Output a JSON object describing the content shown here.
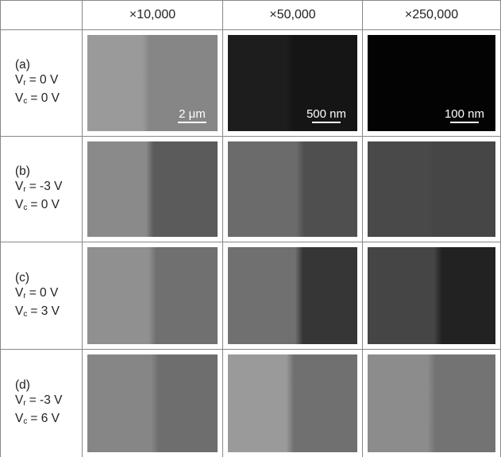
{
  "table": {
    "columns": [
      "×10,000",
      "×50,000",
      "×250,000"
    ],
    "rows": [
      {
        "label": "(a)",
        "lines": [
          {
            "symbol": "V",
            "sub": "r",
            "value": "= 0 V"
          },
          {
            "symbol": "V",
            "sub": "c",
            "value": "= 0 V"
          }
        ],
        "scale_bars": [
          "2 μm",
          "500 nm",
          "100 nm"
        ]
      },
      {
        "label": "(b)",
        "lines": [
          {
            "symbol": "V",
            "sub": "r",
            "value": "= -3 V"
          },
          {
            "symbol": "V",
            "sub": "c",
            "value": "= 0 V"
          }
        ]
      },
      {
        "label": "(c)",
        "lines": [
          {
            "symbol": "V",
            "sub": "r",
            "value": "= 0 V"
          },
          {
            "symbol": "V",
            "sub": "c",
            "value": "= 3 V"
          }
        ]
      },
      {
        "label": "(d)",
        "lines": [
          {
            "symbol": "V",
            "sub": "r",
            "value": "= -3 V"
          },
          {
            "symbol": "V",
            "sub": "c",
            "value": "= 6 V"
          }
        ]
      }
    ]
  }
}
